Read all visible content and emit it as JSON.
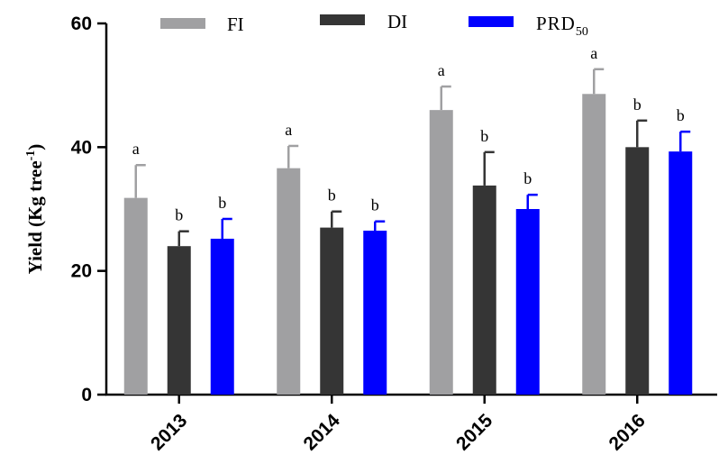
{
  "chart_data": {
    "type": "bar",
    "title": "",
    "xlabel": "",
    "ylabel": {
      "main": "Yield (Kg tree",
      "sup": "-1",
      "close": ")"
    },
    "ylim": [
      0,
      60
    ],
    "yticks": [
      "0",
      "20",
      "40",
      "60"
    ],
    "categories": [
      "2013",
      "2014",
      "2015",
      "2016"
    ],
    "legend_position": "top",
    "series": [
      {
        "name": "FI",
        "name_sub": "",
        "color": "#a0a0a2",
        "values": [
          31.8,
          36.6,
          46.0,
          48.6
        ],
        "errors": [
          5.3,
          3.6,
          3.8,
          4.0
        ],
        "letters": [
          "a",
          "a",
          "a",
          "a"
        ]
      },
      {
        "name": "DI",
        "name_sub": "",
        "color": "#353535",
        "values": [
          24.0,
          27.0,
          33.8,
          40.0
        ],
        "errors": [
          2.4,
          2.6,
          5.4,
          4.3
        ],
        "letters": [
          "b",
          "b",
          "b",
          "b"
        ]
      },
      {
        "name": "PRD",
        "name_sub": "50",
        "color": "#0000ff",
        "values": [
          25.2,
          26.5,
          30.0,
          39.3
        ],
        "errors": [
          3.2,
          1.5,
          2.3,
          3.2
        ],
        "letters": [
          "b",
          "b",
          "b",
          "b"
        ]
      }
    ]
  }
}
